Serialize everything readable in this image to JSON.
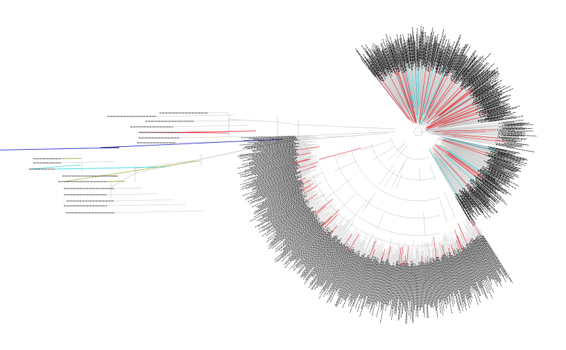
{
  "figure": {
    "type": "circular-phylogenetic-tree",
    "background_color": "#ffffff",
    "colors": {
      "branch_default": "#bdbdbd",
      "branch_red": "#e8303a",
      "branch_cyan": "#2ad6e0",
      "branch_blue": "#2b2bd0",
      "branch_olive": "#a5ad3a",
      "leaf_label": "#111111"
    },
    "label_style": "tiny-unreadable-tip-labels"
  }
}
